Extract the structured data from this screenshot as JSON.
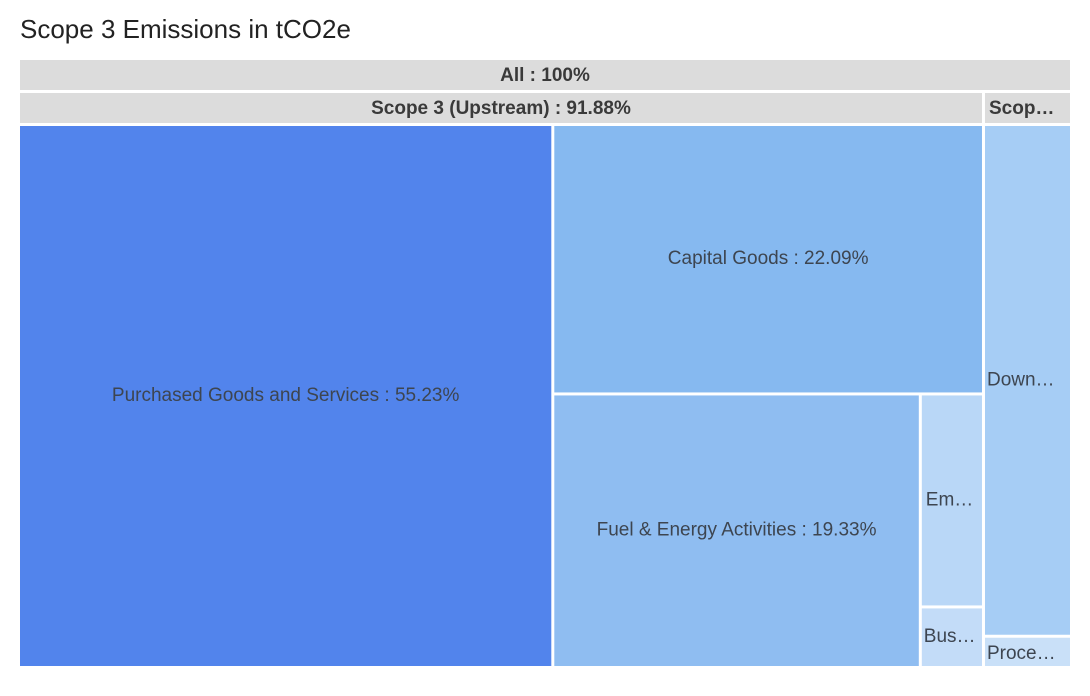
{
  "title": "Scope 3 Emissions in tCO2e",
  "chart_data": {
    "type": "treemap",
    "title": "Scope 3 Emissions in tCO2e",
    "root": {
      "label": "All : 100%",
      "value": 100,
      "children": [
        {
          "label": "Scope 3 (Upstream) : 91.88%",
          "value": 91.88,
          "children": [
            {
              "label": "Purchased Goods and Services : 55.23%",
              "value": 55.23,
              "color": "#5284ec"
            },
            {
              "label": "Capital Goods : 22.09%",
              "value": 22.09,
              "color": "#86b9f0"
            },
            {
              "label": "Fuel & Energy Activities : 19.33%",
              "value": 19.33,
              "color": "#8fbdf1"
            },
            {
              "label": "Em…",
              "value": 2.6,
              "color": "#b9d7f7"
            },
            {
              "label": "Bus…",
              "value": 0.75,
              "color": "#c3dcf8"
            }
          ]
        },
        {
          "label": "Scop…",
          "value": 8.12,
          "children": [
            {
              "label": "Down…",
              "value": 7.65,
              "color": "#a6cdf5"
            },
            {
              "label": "Proce…",
              "value": 0.47,
              "color": "#c9e0f8"
            }
          ]
        }
      ]
    },
    "header_color": "#dcdcdc"
  }
}
